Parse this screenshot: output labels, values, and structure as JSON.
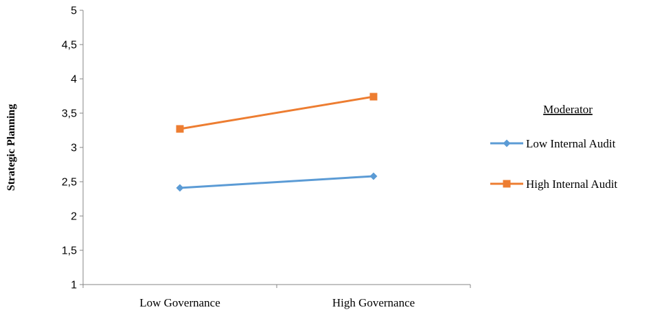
{
  "chart_data": {
    "type": "line",
    "categories": [
      "Low Governance",
      "High Governance"
    ],
    "series": [
      {
        "name": "Low Internal Audit",
        "values": [
          2.41,
          2.58
        ],
        "color": "#5b9bd5",
        "marker": "diamond"
      },
      {
        "name": "High Internal Audit",
        "values": [
          3.27,
          3.74
        ],
        "color": "#ed7d31",
        "marker": "square"
      }
    ],
    "ylabel": "Strategic Planning",
    "xlabel": "",
    "ylim": [
      1,
      5
    ],
    "yticks": [
      "1",
      "1,5",
      "2",
      "2,5",
      "3",
      "3,5",
      "4",
      "4,5",
      "5"
    ],
    "grid": false,
    "legend": {
      "title": "Moderator",
      "placement": "right"
    }
  }
}
